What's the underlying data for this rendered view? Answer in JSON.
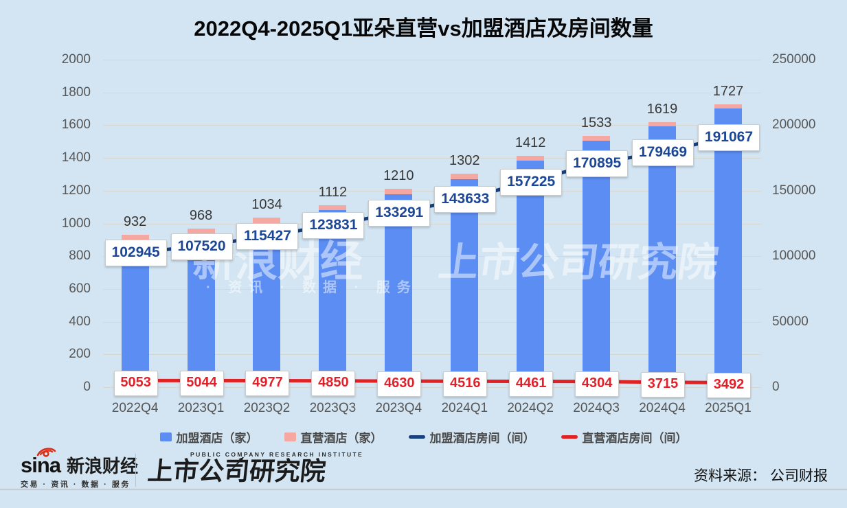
{
  "title": "2022Q4-2025Q1亚朵直营vs加盟酒店及房间数量",
  "chart_data": {
    "type": "combo (stacked bar + 2 lines)",
    "categories": [
      "2022Q4",
      "2023Q1",
      "2023Q2",
      "2023Q3",
      "2023Q4",
      "2024Q1",
      "2024Q2",
      "2024Q3",
      "2024Q4",
      "2025Q1"
    ],
    "bar_stack_total_labels": [
      932,
      968,
      1034,
      1112,
      1210,
      1302,
      1412,
      1533,
      1619,
      1727
    ],
    "series": [
      {
        "name": "加盟酒店（家）",
        "type": "bar",
        "stack": "hotels",
        "axis": "left",
        "color": "#5b8df2",
        "note": "blue base of stacked bar; per-quarter values not labeled (total minus direct cap)"
      },
      {
        "name": "直营酒店（家）",
        "type": "bar",
        "stack": "hotels",
        "axis": "left",
        "color": "#f5a7a1",
        "values_estimated": [
          33,
          32,
          32,
          31,
          30,
          30,
          29,
          29,
          26,
          24
        ],
        "note": "pink cap of stacked bar; values not labeled, estimated from pixel height"
      },
      {
        "name": "加盟酒店房间（间）",
        "type": "line",
        "axis": "right",
        "color": "#17407e",
        "values": [
          102945,
          107520,
          115427,
          123831,
          133291,
          143633,
          157225,
          170895,
          179469,
          191067
        ]
      },
      {
        "name": "直营酒店房间（间）",
        "type": "line",
        "axis": "right",
        "color": "#e12222",
        "values": [
          5053,
          5044,
          4977,
          4850,
          4630,
          4516,
          4461,
          4304,
          3715,
          3492
        ]
      }
    ],
    "left_axis": {
      "min": 0,
      "max": 2000,
      "ticks": [
        0,
        200,
        400,
        600,
        800,
        1000,
        1200,
        1400,
        1600,
        1800,
        2000
      ]
    },
    "right_axis": {
      "min": 0,
      "max": 250000,
      "ticks": [
        0,
        50000,
        100000,
        150000,
        200000,
        250000
      ]
    },
    "grid": true,
    "legend_position": "bottom"
  },
  "watermark": {
    "left_main": "新浪财经",
    "left_sub": "· 资讯 · 数据 · 服务",
    "right_main": "上市公司研究院"
  },
  "footer": {
    "sina_word": "sina",
    "sina_brand": "新浪财经",
    "sina_tagline": "交易 · 资讯 · 数据 · 服务",
    "institute_en": "PUBLIC COMPANY RESEARCH INSTITUTE",
    "institute_cn": "上市公司研究院",
    "source": "资料来源： 公司财报"
  },
  "colors": {
    "background": "#d3e5f2",
    "bar_blue": "#5b8df2",
    "bar_pink": "#f5a7a1",
    "line_navy": "#17407e",
    "line_red": "#e12222",
    "grid": "#d8d7cf",
    "axis_text": "#575757"
  }
}
